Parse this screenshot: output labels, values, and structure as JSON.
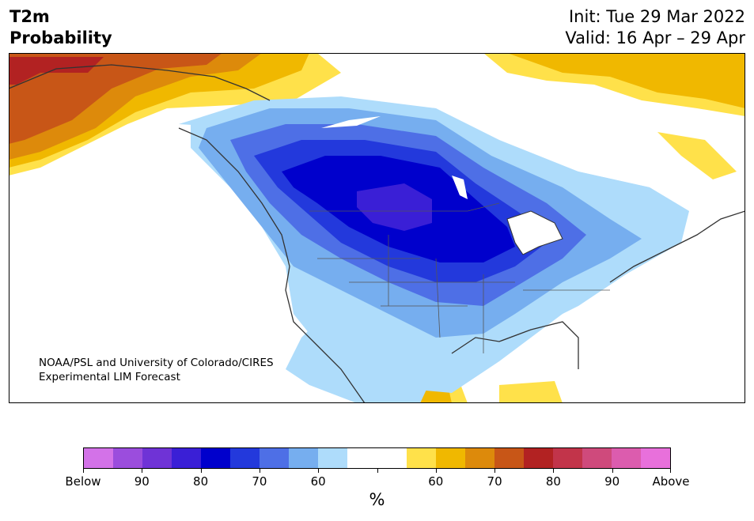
{
  "title": {
    "line1": "T2m",
    "line2": "Probability"
  },
  "dates": {
    "init": "Init: Tue 29 Mar 2022",
    "valid": "Valid: 16 Apr – 29 Apr"
  },
  "credit": {
    "line1": "NOAA/PSL and University of Colorado/CIRES",
    "line2": "Experimental LIM Forecast"
  },
  "colorbar": {
    "colors": [
      "#d372e8",
      "#9b4ddd",
      "#6f33d6",
      "#3a1fd6",
      "#0000cc",
      "#2339dc",
      "#4e6fe6",
      "#76aeef",
      "#aedcfb",
      "#ffffff",
      "#ffffff",
      "#ffe14a",
      "#f0b800",
      "#dd8a0b",
      "#c85617",
      "#b22222",
      "#c2344a",
      "#cf4a7c",
      "#dc5cae",
      "#e870db"
    ],
    "tick_labels": [
      "Below",
      "90",
      "80",
      "70",
      "60",
      "60",
      "70",
      "80",
      "90",
      "Above"
    ],
    "unit": "%"
  },
  "map": {
    "region": "North America"
  }
}
